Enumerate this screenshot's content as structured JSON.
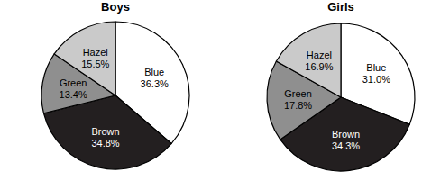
{
  "chart_data": [
    {
      "type": "pie",
      "title": "Boys",
      "categories": [
        "Blue",
        "Brown",
        "Green",
        "Hazel"
      ],
      "values": [
        36.3,
        34.8,
        13.4,
        15.5
      ],
      "value_labels": [
        "36.3%",
        "34.8%",
        "13.4%",
        "15.5%"
      ],
      "colors": [
        "#ffffff",
        "#231f20",
        "#8f8f8f",
        "#cacaca"
      ],
      "data_labels": true
    },
    {
      "type": "pie",
      "title": "Girls",
      "categories": [
        "Blue",
        "Brown",
        "Green",
        "Hazel"
      ],
      "values": [
        31.0,
        34.3,
        17.8,
        16.9
      ],
      "value_labels": [
        "31.0%",
        "34.3%",
        "17.8%",
        "16.9%"
      ],
      "colors": [
        "#ffffff",
        "#231f20",
        "#8f8f8f",
        "#cacaca"
      ],
      "data_labels": true
    }
  ]
}
